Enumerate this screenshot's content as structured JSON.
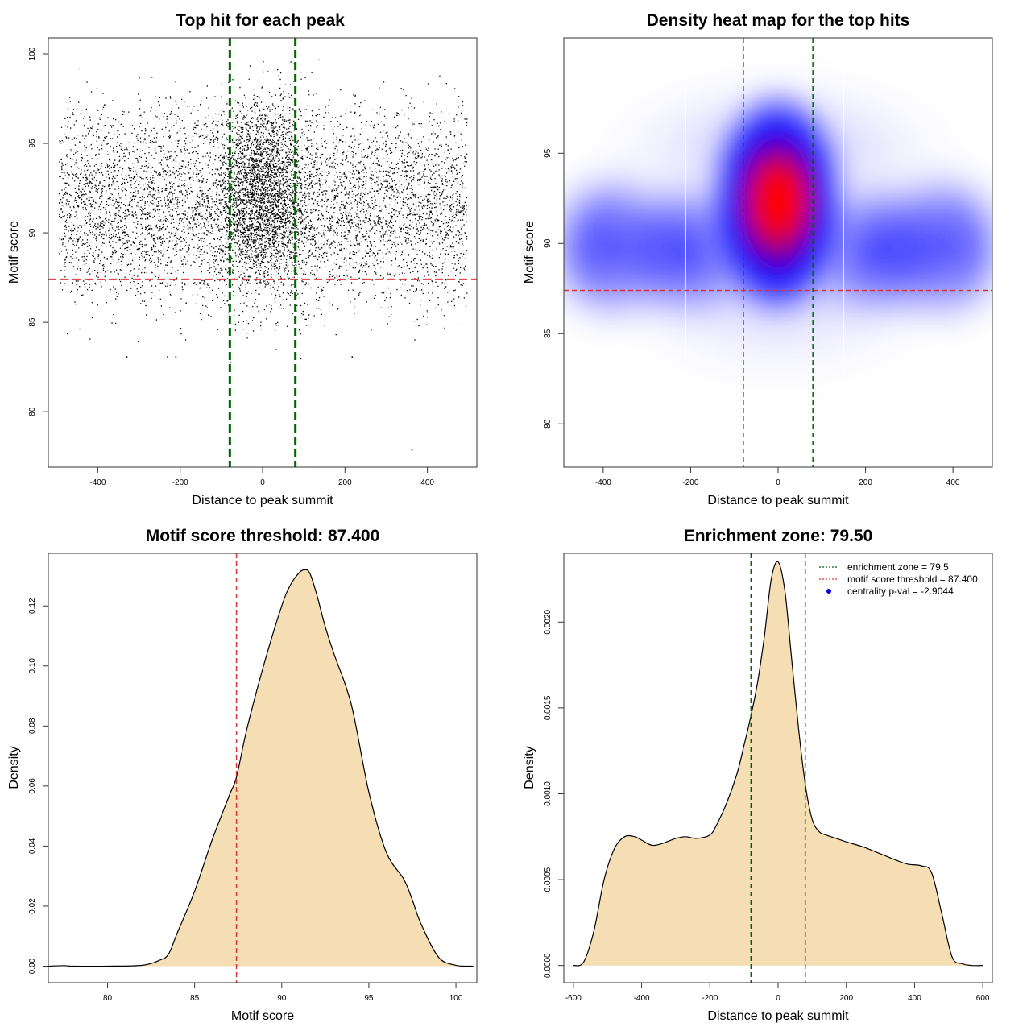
{
  "chart_data": [
    {
      "type": "scatter",
      "title": "Top hit for each peak",
      "xlabel": "Distance to peak summit",
      "ylabel": "Motif score",
      "xlim": [
        -520,
        520
      ],
      "ylim": [
        76.9,
        100.9
      ],
      "xticks": [
        -400,
        -200,
        0,
        200,
        400
      ],
      "xtick_labels": [
        "-400",
        "-200",
        "0",
        "200",
        "400"
      ],
      "yticks": [
        80,
        85,
        90,
        95,
        100
      ],
      "ytick_labels": [
        "80",
        "85",
        "90",
        "95",
        "100"
      ],
      "vlines": [
        -79.5,
        79.5
      ],
      "vline_color": "#006400",
      "hline": 87.4,
      "hline_color": "#dd3333",
      "outliers": [
        [
          361,
          77.9
        ],
        [
          -79,
          82.8
        ],
        [
          -232,
          83.1
        ],
        [
          -212,
          83.1
        ],
        [
          -331,
          83.1
        ],
        [
          216,
          83.1
        ],
        [
          32,
          83.5
        ],
        [
          91,
          83.0
        ]
      ],
      "points_description": "about 10,000 motif hits spread across -495..495 with a dense cluster near 0 at scores 88-97"
    },
    {
      "type": "heatmap",
      "title": "Density heat map for the top hits",
      "xlabel": "Distance to peak summit",
      "ylabel": "Motif score",
      "xlim": [
        -490,
        490
      ],
      "ylim": [
        77.6,
        101.4
      ],
      "xticks": [
        -400,
        -200,
        0,
        200,
        400
      ],
      "xtick_labels": [
        "-400",
        "-200",
        "0",
        "200",
        "400"
      ],
      "yticks": [
        80,
        85,
        90,
        95
      ],
      "ytick_labels": [
        "80",
        "85",
        "90",
        "95"
      ],
      "vlines": [
        -79.5,
        79.5
      ],
      "vline_color": "#006400",
      "hline": 87.4,
      "hline_color": "#dd3333",
      "peak": [
        10,
        91.8
      ],
      "colors": [
        "#ffffff",
        "#0000ff",
        "#ff0000"
      ]
    },
    {
      "type": "area",
      "title": "Motif score threshold: 87.400",
      "xlabel": "Motif score",
      "ylabel": "Density",
      "xlim": [
        76.6,
        101.2
      ],
      "ylim": [
        -0.0055,
        0.1375
      ],
      "xticks": [
        80,
        85,
        90,
        95,
        100
      ],
      "xtick_labels": [
        "80",
        "85",
        "90",
        "95",
        "100"
      ],
      "yticks": [
        0.0,
        0.02,
        0.04,
        0.06,
        0.08,
        0.1,
        0.12
      ],
      "ytick_labels": [
        "0.00",
        "0.02",
        "0.04",
        "0.06",
        "0.08",
        "0.10",
        "0.12"
      ],
      "x": [
        76.6,
        77.5,
        78.0,
        80.0,
        82.0,
        83.0,
        83.5,
        84.0,
        85.0,
        86.0,
        87.0,
        87.4,
        88.0,
        89.0,
        90.0,
        90.5,
        91.0,
        91.3,
        91.6,
        92.0,
        92.5,
        93.0,
        94.0,
        95.0,
        96.0,
        97.0,
        97.5,
        98.0,
        99.0,
        100.0,
        101.0
      ],
      "y": [
        0.0,
        0.0002,
        0.0,
        0.0,
        0.0003,
        0.002,
        0.004,
        0.011,
        0.025,
        0.042,
        0.057,
        0.063,
        0.079,
        0.101,
        0.12,
        0.127,
        0.131,
        0.132,
        0.131,
        0.124,
        0.113,
        0.104,
        0.087,
        0.058,
        0.038,
        0.029,
        0.022,
        0.014,
        0.003,
        0.0003,
        0.0
      ],
      "fill_color": "#f5deb3",
      "vline": 87.4,
      "vline_color": "#dd3333"
    },
    {
      "type": "area",
      "title": "Enrichment zone: 79.50",
      "xlabel": "Distance to peak summit",
      "ylabel": "Density",
      "xlim": [
        -628,
        628
      ],
      "ylim": [
        -0.0001,
        0.0024
      ],
      "xticks": [
        -600,
        -400,
        -200,
        0,
        200,
        400,
        600
      ],
      "xtick_labels": [
        "-600",
        "-400",
        "-200",
        "0",
        "200",
        "400",
        "600"
      ],
      "yticks": [
        0.0,
        0.0005,
        0.001,
        0.0015,
        0.002
      ],
      "ytick_labels": [
        "0.0000",
        "0.0005",
        "0.0010",
        "0.0015",
        "0.0020"
      ],
      "x": [
        -600,
        -570,
        -540,
        -510,
        -480,
        -450,
        -420,
        -400,
        -370,
        -340,
        -300,
        -270,
        -240,
        -200,
        -180,
        -150,
        -120,
        -100,
        -80,
        -60,
        -40,
        -20,
        0,
        20,
        40,
        60,
        80,
        100,
        120,
        140,
        170,
        200,
        250,
        300,
        350,
        380,
        420,
        450,
        480,
        510,
        540,
        570,
        600
      ],
      "y": [
        0.0,
        2e-05,
        0.0002,
        0.0005,
        0.00068,
        0.00075,
        0.00075,
        0.00073,
        0.0007,
        0.00071,
        0.00074,
        0.00075,
        0.00074,
        0.00076,
        0.00082,
        0.00095,
        0.00112,
        0.00128,
        0.00145,
        0.00165,
        0.00192,
        0.00225,
        0.00235,
        0.00218,
        0.00178,
        0.00138,
        0.00105,
        0.00085,
        0.00078,
        0.00076,
        0.00074,
        0.00072,
        0.00069,
        0.00065,
        0.00061,
        0.00059,
        0.00058,
        0.00054,
        0.0003,
        5e-05,
        1e-05,
        0.0,
        0.0
      ],
      "fill_color": "#f5deb3",
      "vlines": [
        -79.5,
        79.5
      ],
      "vline_color": "#006400",
      "legend": [
        "enrichment zone = 79.5",
        "motif score threshold = 87.400",
        "centrality p-val = -2.9044"
      ],
      "legend_colors": [
        "#006400",
        "#dd3333",
        "#0000ff"
      ],
      "legend_position": "top-right"
    }
  ]
}
